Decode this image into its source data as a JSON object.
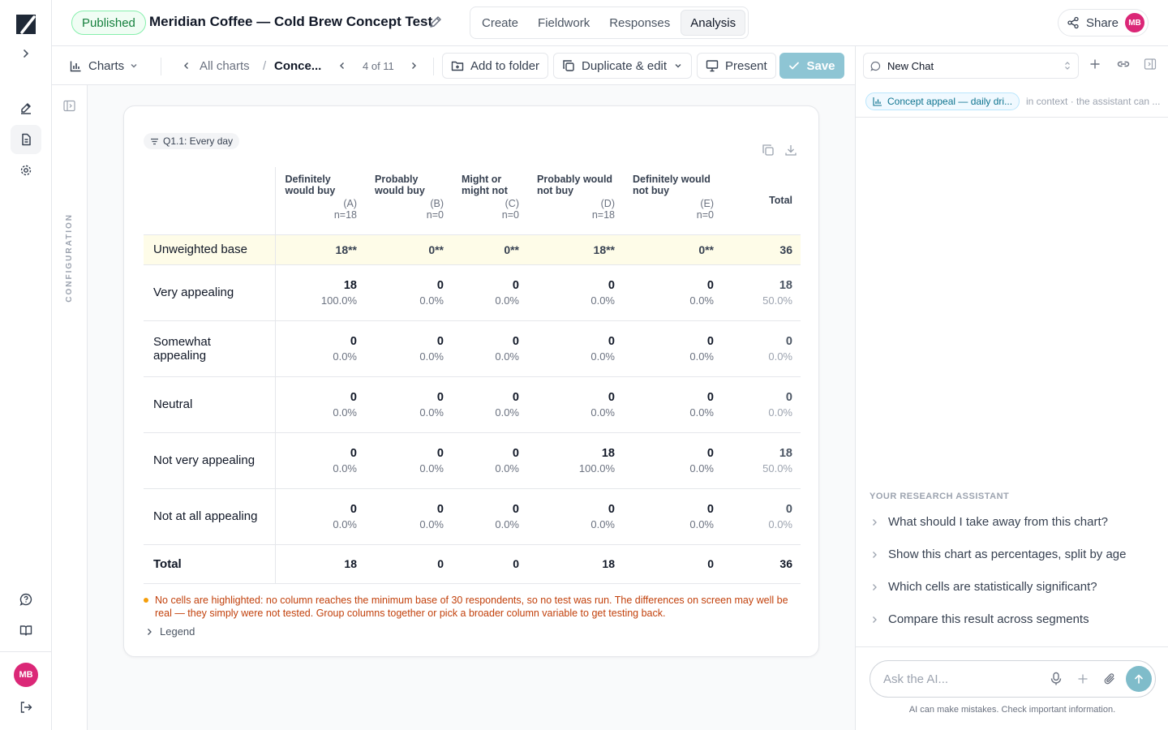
{
  "rail": {
    "avatar_initials": "MB"
  },
  "header": {
    "status_badge": "Published",
    "title": "Meridian Coffee — Cold Brew Concept Test",
    "tabs": [
      {
        "label": "Create",
        "active": false
      },
      {
        "label": "Fieldwork",
        "active": false
      },
      {
        "label": "Responses",
        "active": false
      },
      {
        "label": "Analysis",
        "active": true
      }
    ],
    "share_label": "Share",
    "avatar_initials": "MB"
  },
  "toolbar": {
    "charts_label": "Charts",
    "all_charts_label": "All charts",
    "breadcrumb_current": "Conce...",
    "pager": "4 of 11",
    "add_to_folder": "Add to folder",
    "duplicate_edit": "Duplicate & edit",
    "present": "Present",
    "save": "Save"
  },
  "config": {
    "label": "CONFIGURATION"
  },
  "table": {
    "filter_chip": "Q1.1: Every day",
    "columns": [
      {
        "label": "Definitely would buy",
        "code": "(A)",
        "n": "n=18"
      },
      {
        "label": "Probably would buy",
        "code": "(B)",
        "n": "n=0"
      },
      {
        "label": "Might or might not",
        "code": "(C)",
        "n": "n=0"
      },
      {
        "label": "Probably would not buy",
        "code": "(D)",
        "n": "n=18"
      },
      {
        "label": "Definitely would not buy",
        "code": "(E)",
        "n": "n=0"
      }
    ],
    "total_header": "Total",
    "base_row": {
      "label": "Unweighted base",
      "values": [
        "18**",
        "0**",
        "0**",
        "18**",
        "0**"
      ],
      "total": "36"
    },
    "rows": [
      {
        "label": "Very appealing",
        "cells": [
          [
            "18",
            "100.0%"
          ],
          [
            "0",
            "0.0%"
          ],
          [
            "0",
            "0.0%"
          ],
          [
            "0",
            "0.0%"
          ],
          [
            "0",
            "0.0%"
          ]
        ],
        "total": [
          "18",
          "50.0%"
        ]
      },
      {
        "label": "Somewhat appealing",
        "cells": [
          [
            "0",
            "0.0%"
          ],
          [
            "0",
            "0.0%"
          ],
          [
            "0",
            "0.0%"
          ],
          [
            "0",
            "0.0%"
          ],
          [
            "0",
            "0.0%"
          ]
        ],
        "total": [
          "0",
          "0.0%"
        ]
      },
      {
        "label": "Neutral",
        "cells": [
          [
            "0",
            "0.0%"
          ],
          [
            "0",
            "0.0%"
          ],
          [
            "0",
            "0.0%"
          ],
          [
            "0",
            "0.0%"
          ],
          [
            "0",
            "0.0%"
          ]
        ],
        "total": [
          "0",
          "0.0%"
        ]
      },
      {
        "label": "Not very appealing",
        "cells": [
          [
            "0",
            "0.0%"
          ],
          [
            "0",
            "0.0%"
          ],
          [
            "0",
            "0.0%"
          ],
          [
            "18",
            "100.0%"
          ],
          [
            "0",
            "0.0%"
          ]
        ],
        "total": [
          "18",
          "50.0%"
        ]
      },
      {
        "label": "Not at all appealing",
        "cells": [
          [
            "0",
            "0.0%"
          ],
          [
            "0",
            "0.0%"
          ],
          [
            "0",
            "0.0%"
          ],
          [
            "0",
            "0.0%"
          ],
          [
            "0",
            "0.0%"
          ]
        ],
        "total": [
          "0",
          "0.0%"
        ]
      }
    ],
    "total_row": {
      "label": "Total",
      "values": [
        "18",
        "0",
        "0",
        "18",
        "0"
      ],
      "total": "36"
    },
    "note": "No cells are highlighted: no column reaches the minimum base of 30 respondents, so no test was run. The differences on screen may well be real — they simply were not tested. Group columns together or pick a broader column variable to get testing back.",
    "legend_label": "Legend"
  },
  "chat": {
    "selected_chat": "New Chat",
    "context_chip": "Concept appeal — daily dri...",
    "context_note": "in context · the assistant can ...",
    "assistant_title": "YOUR RESEARCH ASSISTANT",
    "suggestions": [
      "What should I take away from this chart?",
      "Show this chart as percentages, split by age",
      "Which cells are statistically significant?",
      "Compare this result across segments"
    ],
    "input_placeholder": "Ask the AI...",
    "disclaimer": "AI can make mistakes. Check important information."
  },
  "colors": {
    "accent": "#8ec5d4",
    "published_green": "#15803d",
    "base_row_bg": "#fefce8",
    "note_text": "#c2410c",
    "avatar": "#db2777"
  }
}
